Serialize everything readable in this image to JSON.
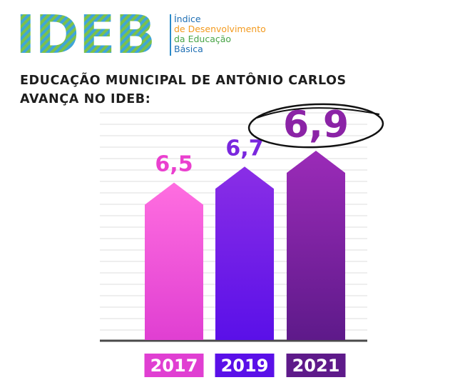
{
  "logo": {
    "wordmark": "IDEB",
    "line1": "Índice",
    "line2": "de Desenvolvimento",
    "line3": "da Educação",
    "line4": "Básica"
  },
  "headline": {
    "line1": "EDUCAÇÃO MUNICIPAL DE ANTÔNIO CARLOS",
    "line2": "AVANÇA NO IDEB:"
  },
  "chart_data": {
    "type": "bar",
    "categories": [
      "2017",
      "2019",
      "2021"
    ],
    "values": [
      6.5,
      6.7,
      6.9
    ],
    "value_labels": [
      "6,5",
      "6,7",
      "6,9"
    ],
    "title": "",
    "xlabel": "",
    "ylabel": "",
    "grid": true,
    "highlight": "2021",
    "colors": {
      "2017": [
        "#ff6ee0",
        "#e03fd2"
      ],
      "2019": [
        "#8a2ee6",
        "#5a10e8"
      ],
      "2021": [
        "#9b2bb8",
        "#5e1a8a"
      ],
      "label_2017": "#ea40cf",
      "label_2019": "#7a27de",
      "label_2021": "#8b23a6",
      "grid": "#dcdcdc",
      "baseline": "#4a4a4a"
    }
  }
}
